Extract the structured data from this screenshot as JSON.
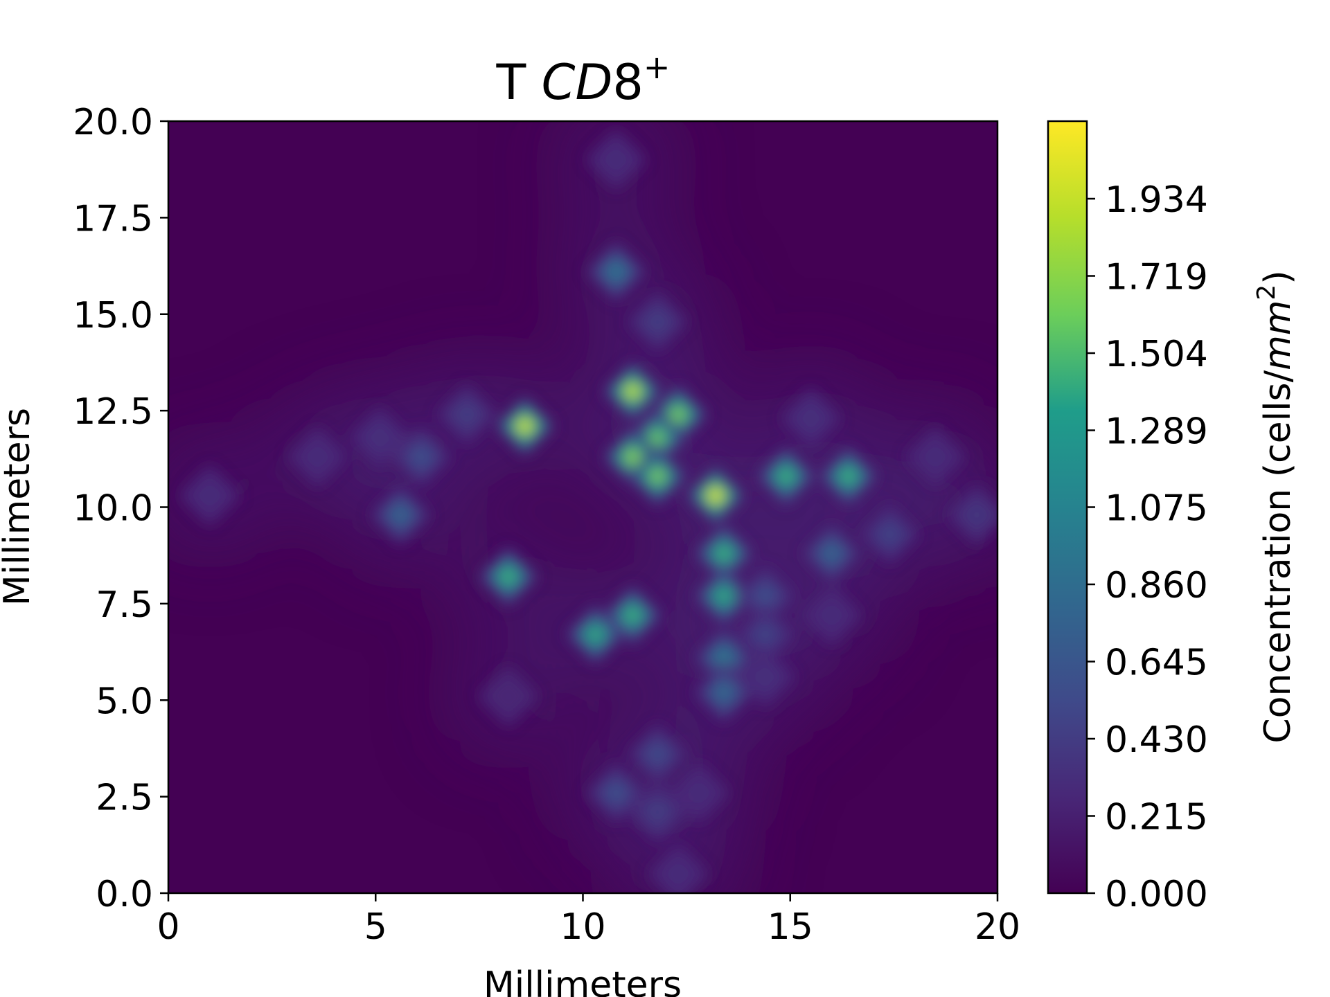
{
  "chart_data": {
    "type": "heatmap",
    "title_main": "T ",
    "title_italic": "CD",
    "title_rest": "8",
    "title_sup": "+",
    "xlabel": "Millimeters",
    "ylabel": "Millimeters",
    "xlim": [
      0,
      20
    ],
    "ylim": [
      0,
      20
    ],
    "x_ticks": [
      0,
      5,
      10,
      15,
      20
    ],
    "x_tick_labels": [
      "0",
      "5",
      "10",
      "15",
      "20"
    ],
    "y_ticks": [
      0,
      2.5,
      5,
      7.5,
      10,
      12.5,
      15,
      17.5,
      20
    ],
    "y_tick_labels": [
      "0.0",
      "2.5",
      "5.0",
      "7.5",
      "10.0",
      "12.5",
      "15.0",
      "17.5",
      "20.0"
    ],
    "colorbar": {
      "label_main": "Concentration (cells/",
      "label_italic": "mm",
      "label_sup": "2",
      "label_close": ")",
      "range": [
        0,
        2.15
      ],
      "ticks": [
        0,
        0.215,
        0.43,
        0.645,
        0.86,
        1.075,
        1.289,
        1.504,
        1.719,
        1.934
      ],
      "tick_labels": [
        "0.000",
        "0.215",
        "0.430",
        "0.645",
        "0.860",
        "1.075",
        "1.289",
        "1.504",
        "1.719",
        "1.934"
      ],
      "colormap": "viridis"
    },
    "colormap_stops": [
      "#440154",
      "#482777",
      "#3f4a8a",
      "#31678e",
      "#26838f",
      "#1f9d8a",
      "#6cce5a",
      "#b6de2b",
      "#fee825"
    ],
    "hotspots": [
      {
        "x": 8.6,
        "y": 12.1,
        "value": 2.05
      },
      {
        "x": 11.2,
        "y": 13.0,
        "value": 2.0
      },
      {
        "x": 12.3,
        "y": 12.4,
        "value": 1.75
      },
      {
        "x": 11.8,
        "y": 11.8,
        "value": 1.7
      },
      {
        "x": 11.2,
        "y": 11.3,
        "value": 1.8
      },
      {
        "x": 11.8,
        "y": 10.8,
        "value": 1.75
      },
      {
        "x": 13.2,
        "y": 10.3,
        "value": 2.1
      },
      {
        "x": 14.9,
        "y": 10.8,
        "value": 1.5
      },
      {
        "x": 16.4,
        "y": 10.8,
        "value": 1.5
      },
      {
        "x": 13.4,
        "y": 8.8,
        "value": 1.5
      },
      {
        "x": 13.4,
        "y": 7.7,
        "value": 1.45
      },
      {
        "x": 8.2,
        "y": 8.2,
        "value": 1.5
      },
      {
        "x": 11.2,
        "y": 7.2,
        "value": 1.5
      },
      {
        "x": 10.3,
        "y": 6.7,
        "value": 1.45
      },
      {
        "x": 10.8,
        "y": 16.1,
        "value": 0.95
      },
      {
        "x": 13.4,
        "y": 6.1,
        "value": 1.0
      },
      {
        "x": 13.4,
        "y": 5.2,
        "value": 0.85
      },
      {
        "x": 16.0,
        "y": 8.8,
        "value": 0.8
      },
      {
        "x": 5.6,
        "y": 9.8,
        "value": 0.8
      },
      {
        "x": 6.1,
        "y": 11.3,
        "value": 0.6
      },
      {
        "x": 7.2,
        "y": 12.4,
        "value": 0.45
      },
      {
        "x": 11.8,
        "y": 14.8,
        "value": 0.45
      },
      {
        "x": 11.8,
        "y": 3.6,
        "value": 0.55
      },
      {
        "x": 10.8,
        "y": 2.6,
        "value": 0.6
      },
      {
        "x": 11.8,
        "y": 2.1,
        "value": 0.45
      },
      {
        "x": 14.4,
        "y": 7.7,
        "value": 0.6
      },
      {
        "x": 14.4,
        "y": 6.7,
        "value": 0.5
      },
      {
        "x": 17.4,
        "y": 9.3,
        "value": 0.5
      },
      {
        "x": 19.5,
        "y": 9.8,
        "value": 0.4
      },
      {
        "x": 15.5,
        "y": 12.3,
        "value": 0.35
      },
      {
        "x": 18.5,
        "y": 11.3,
        "value": 0.3
      },
      {
        "x": 5.1,
        "y": 11.8,
        "value": 0.35
      },
      {
        "x": 3.6,
        "y": 11.3,
        "value": 0.3
      },
      {
        "x": 1.0,
        "y": 10.3,
        "value": 0.3
      },
      {
        "x": 10.8,
        "y": 19.0,
        "value": 0.3
      },
      {
        "x": 16.0,
        "y": 7.2,
        "value": 0.3
      },
      {
        "x": 8.2,
        "y": 5.1,
        "value": 0.25
      },
      {
        "x": 12.8,
        "y": 2.6,
        "value": 0.3
      },
      {
        "x": 14.4,
        "y": 5.6,
        "value": 0.35
      },
      {
        "x": 12.3,
        "y": 0.5,
        "value": 0.3
      }
    ]
  }
}
